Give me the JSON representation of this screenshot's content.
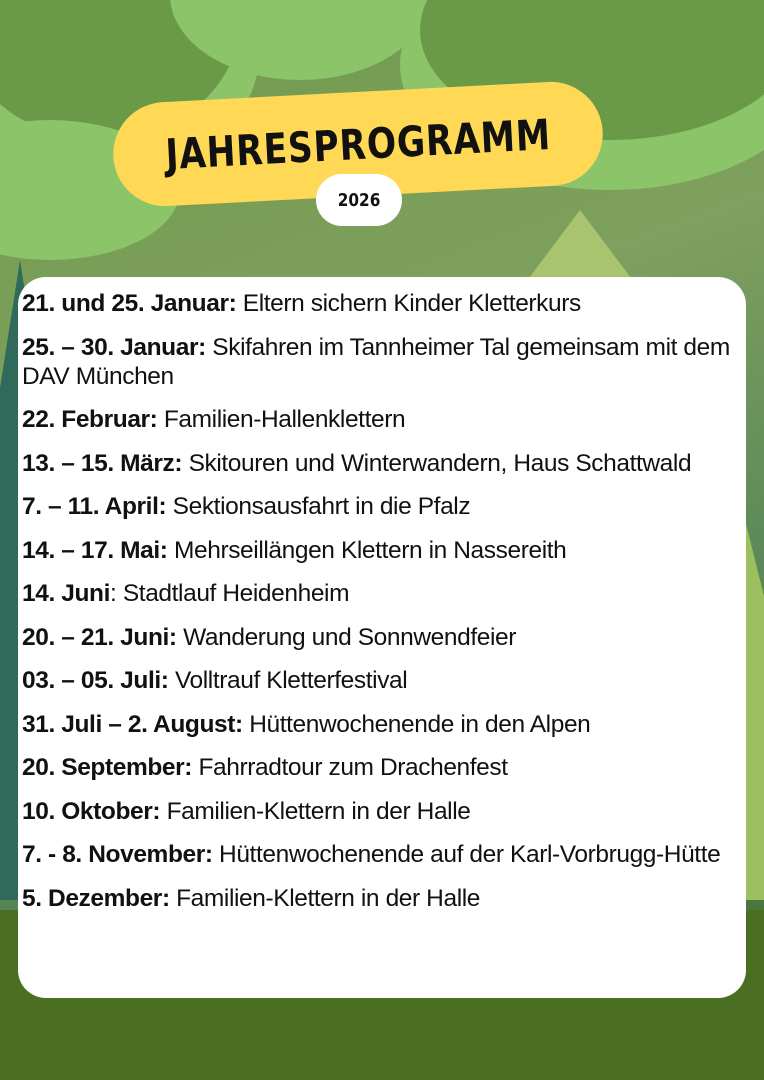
{
  "title": "JAHRESPROGRAMM",
  "year": "2026",
  "colors": {
    "title_pill": "#ffd955",
    "background": "#6f9a4c",
    "ground": "#4b6f22"
  },
  "events": [
    {
      "date": "21. und 25. Januar:",
      "desc": " Eltern sichern Kinder Kletterkurs"
    },
    {
      "date": "25. – 30. Januar:",
      "desc": " Skifahren im Tannheimer Tal gemeinsam mit dem DAV München"
    },
    {
      "date": "22. Februar:",
      "desc": " Familien-Hallenklettern"
    },
    {
      "date": "13. – 15. März:",
      "desc": " Skitouren und Winterwandern, Haus Schattwald"
    },
    {
      "date": "7. – 11. April:",
      "desc": " Sektionsausfahrt in die Pfalz"
    },
    {
      "date": "14. – 17. Mai:",
      "desc": " Mehrseillängen Klettern in Nassereith"
    },
    {
      "date": "14. Juni",
      "desc": ": Stadtlauf Heidenheim"
    },
    {
      "date": "20. – 21. Juni:",
      "desc": " Wanderung und Sonnwendfeier"
    },
    {
      "date": "03. – 05. Juli:",
      "desc": " Volltrauf Kletterfestival"
    },
    {
      "date": "31. Juli – 2. August:",
      "desc": " Hüttenwochenende in den Alpen"
    },
    {
      "date": "20. September:",
      "desc": " Fahrradtour zum Drachenfest"
    },
    {
      "date": "10. Oktober:",
      "desc": " Familien-Klettern in der Halle"
    },
    {
      "date": "7. - 8. November:",
      "desc": " Hüttenwochenende auf der Karl-Vorbrugg-Hütte"
    },
    {
      "date": "5. Dezember:",
      "desc": " Familien-Klettern in der Halle"
    }
  ]
}
